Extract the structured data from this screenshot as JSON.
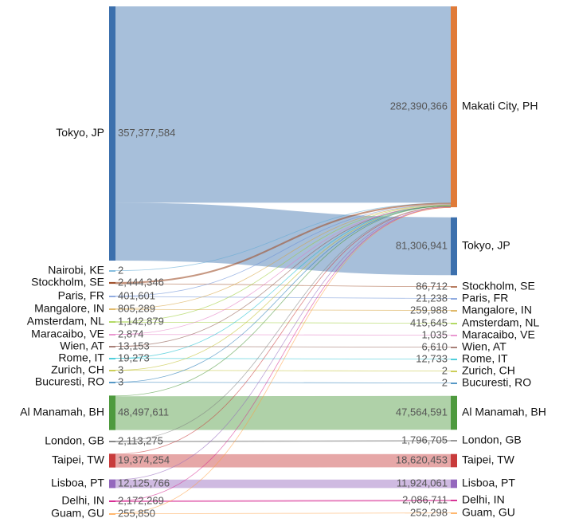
{
  "chart_data": {
    "type": "sankey",
    "nodes": [
      {
        "name": "Tokyo, JP",
        "color": "#3c70ad",
        "source_value": 357377584,
        "source_label": "357,377,584",
        "target_value": 81306941,
        "target_label": "81,306,941"
      },
      {
        "name": "Makati City, PH",
        "color": "#e07b39",
        "source_value": null,
        "source_label": null,
        "target_value": 282390366,
        "target_label": "282,390,366"
      },
      {
        "name": "Nairobi, KE",
        "color": "#5fa8d3",
        "source_value": 2,
        "source_label": "2",
        "target_value": null,
        "target_label": null
      },
      {
        "name": "Stockholm, SE",
        "color": "#a0522d",
        "source_value": 2444346,
        "source_label": "2,444,346",
        "target_value": 86712,
        "target_label": "86,712"
      },
      {
        "name": "Paris, FR",
        "color": "#6b8fd6",
        "source_value": 401601,
        "source_label": "401,601",
        "target_value": 21238,
        "target_label": "21,238"
      },
      {
        "name": "Mangalore, IN",
        "color": "#d6a23a",
        "source_value": 805289,
        "source_label": "805,289",
        "target_value": 259988,
        "target_label": "259,988"
      },
      {
        "name": "Amsterdam, NL",
        "color": "#9acd32",
        "source_value": 1142879,
        "source_label": "1,142,879",
        "target_value": 415645,
        "target_label": "415,645"
      },
      {
        "name": "Maracaibo, VE",
        "color": "#e377c2",
        "source_value": 2874,
        "source_label": "2,874",
        "target_value": 1035,
        "target_label": "1,035"
      },
      {
        "name": "Wien, AT",
        "color": "#8c564b",
        "source_value": 13153,
        "source_label": "13,153",
        "target_value": 6610,
        "target_label": "6,610"
      },
      {
        "name": "Rome, IT",
        "color": "#17becf",
        "source_value": 19273,
        "source_label": "19,273",
        "target_value": 12733,
        "target_label": "12,733"
      },
      {
        "name": "Zurich, CH",
        "color": "#bcbd22",
        "source_value": 3,
        "source_label": "3",
        "target_value": 2,
        "target_label": "2"
      },
      {
        "name": "Bucuresti, RO",
        "color": "#1f77b4",
        "source_value": 3,
        "source_label": "3",
        "target_value": 2,
        "target_label": "2"
      },
      {
        "name": "Al Manamah, BH",
        "color": "#4e9a3e",
        "source_value": 48497611,
        "source_label": "48,497,611",
        "target_value": 47564591,
        "target_label": "47,564,591"
      },
      {
        "name": "London, GB",
        "color": "#7f7f7f",
        "source_value": 2113275,
        "source_label": "2,113,275",
        "target_value": 1796705,
        "target_label": "1,796,705"
      },
      {
        "name": "Taipei, TW",
        "color": "#c83b3b",
        "source_value": 19374254,
        "source_label": "19,374,254",
        "target_value": 18620453,
        "target_label": "18,620,453"
      },
      {
        "name": "Lisboa, PT",
        "color": "#9467bd",
        "source_value": 12125766,
        "source_label": "12,125,766",
        "target_value": 11924061,
        "target_label": "11,924,061"
      },
      {
        "name": "Delhi, IN",
        "color": "#d62790",
        "source_value": 2172269,
        "source_label": "2,172,269",
        "target_value": 2086711,
        "target_label": "2,086,711"
      },
      {
        "name": "Guam, GU",
        "color": "#ff9f3f",
        "source_value": 255850,
        "source_label": "255,850",
        "target_value": 252298,
        "target_label": "252,298"
      }
    ]
  }
}
